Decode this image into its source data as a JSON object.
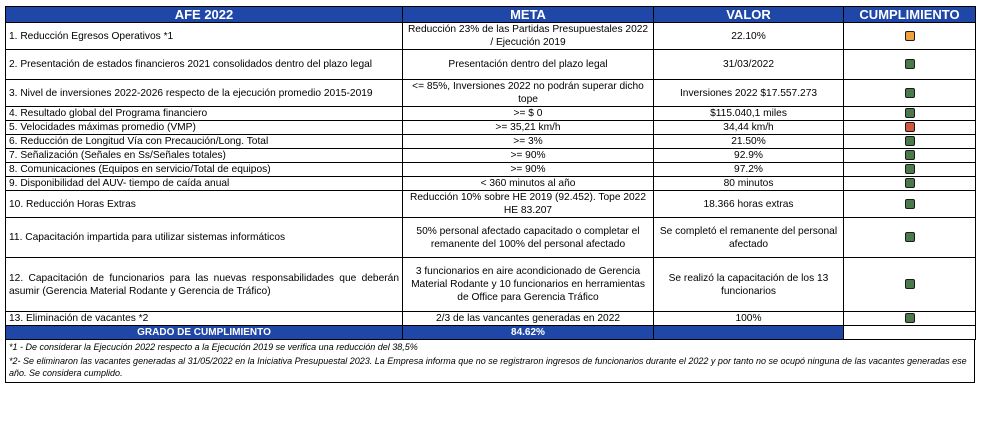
{
  "headers": {
    "afe": "AFE 2022",
    "meta": "META",
    "valor": "VALOR",
    "cumplimiento": "CUMPLIMIENTO"
  },
  "colors": {
    "header_bg": "#1f47a8",
    "green": "#4a7a4c",
    "orange": "#f0a03c",
    "red": "#d2553c"
  },
  "rows": [
    {
      "indicador": "1. Reducción Egresos Operativos *1",
      "meta": "Reducción 23% de las Partidas Presupuestales 2022 / Ejecución 2019",
      "valor": "22.10%",
      "status": "orange",
      "h": 26
    },
    {
      "indicador": "2. Presentación de estados financieros 2021 consolidados dentro del plazo legal",
      "meta": "Presentación dentro del plazo legal",
      "valor": "31/03/2022",
      "status": "green",
      "h": 30
    },
    {
      "indicador": "3. Nivel de inversiones 2022-2026 respecto de la ejecución promedio 2015-2019",
      "meta": "<= 85%, Inversiones 2022 no podrán superar dicho tope",
      "valor": "Inversiones 2022 $17.557.273",
      "status": "green",
      "h": 26
    },
    {
      "indicador": "4. Resultado global del Programa financiero",
      "meta": ">= $ 0",
      "valor": "$115.040,1 miles",
      "status": "green",
      "h": 13
    },
    {
      "indicador": "5. Velocidades máximas promedio (VMP)",
      "meta": ">= 35,21 km/h",
      "valor": "34,44 km/h",
      "status": "red",
      "h": 13
    },
    {
      "indicador": "6. Reducción de Longitud Vía con Precaución/Long. Total",
      "meta": ">= 3%",
      "valor": "21.50%",
      "status": "green",
      "h": 13
    },
    {
      "indicador": "7. Señalización (Señales en Ss/Señales totales)",
      "meta": ">= 90%",
      "valor": "92.9%",
      "status": "green",
      "h": 13
    },
    {
      "indicador": "8. Comunicaciones (Equipos en servicio/Total de equipos)",
      "meta": ">= 90%",
      "valor": "97.2%",
      "status": "green",
      "h": 13
    },
    {
      "indicador": "9. Disponibilidad del AUV- tiempo de caída anual",
      "meta": "< 360 minutos al año",
      "valor": "80 minutos",
      "status": "green",
      "h": 13
    },
    {
      "indicador": "10. Reducción Horas Extras",
      "meta": "Reducción 10% sobre HE 2019 (92.452). Tope 2022 HE 83.207",
      "valor": "18.366 horas extras",
      "status": "green",
      "h": 26
    },
    {
      "indicador": "11. Capacitación impartida para utilizar sistemas informáticos",
      "meta": "50% personal afectado capacitado o completar el remanente del 100% del personal afectado",
      "valor": "Se completó el remanente del personal afectado",
      "status": "green",
      "h": 40
    },
    {
      "indicador": "12. Capacitación de funcionarios para las nuevas responsabilidades que deberán asumir (Gerencia Material Rodante y Gerencia de Tráfico)",
      "meta": "3 funcionarios en aire acondicionado de Gerencia Material Rodante y 10 funcionarios en herramientas de Office para Gerencia Tráfico",
      "valor": "Se realizó la capacitación de los 13 funcionarios",
      "status": "green",
      "h": 54
    },
    {
      "indicador": "13. Eliminación de vacantes *2",
      "meta": "2/3 de las vancantes generadas en 2022",
      "valor": "100%",
      "status": "green",
      "h": 13
    }
  ],
  "grade": {
    "label": "GRADO DE CUMPLIMIENTO",
    "value": "84.62%"
  },
  "notes": [
    "*1 - De considerar la Ejecución 2022 respecto a la Ejecución 2019 se verifica una reducción del 38,5%",
    "*2- Se eliminaron las vacantes generadas al 31/05/2022 en la Iniciativa Presupuestal 2023. La Empresa informa que no se registraron ingresos de funcionarios durante el 2022 y por tanto no se ocupó ninguna de las vacantes generadas ese año. Se considera cumplido."
  ]
}
